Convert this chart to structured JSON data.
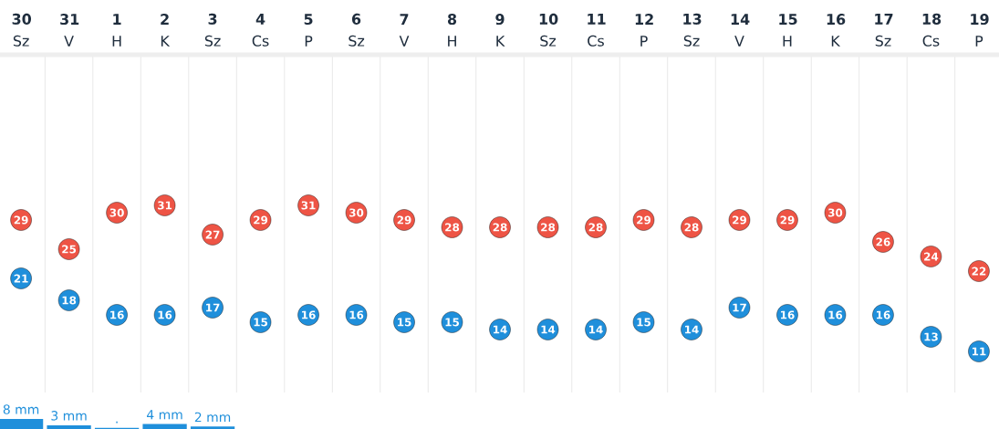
{
  "chart_data": [
    {
      "type": "scatter",
      "categories": [
        "**30** Sz",
        "**31** V",
        "**1** H",
        "**2** K",
        "**3** Sz",
        "**4** Cs",
        "**5** P",
        "**6** Sz",
        "**7** V",
        "**8** H",
        "**9** K",
        "**10** Sz",
        "**11** Cs",
        "**12** P",
        "**13** Sz",
        "**14** V",
        "**15** H",
        "**16** K",
        "**17** Sz",
        "**18** Cs",
        "**19** P"
      ],
      "series": [
        {
          "color": "#ee5445",
          "values": [
            29,
            25,
            30,
            31,
            27,
            29,
            31,
            30,
            29,
            28,
            28,
            28,
            28,
            29,
            28,
            29,
            29,
            30,
            26,
            24,
            22
          ]
        },
        {
          "color": "#1f8fdb",
          "values": [
            21,
            18,
            16,
            16,
            17,
            15,
            16,
            16,
            15,
            15,
            14,
            14,
            14,
            15,
            14,
            17,
            16,
            16,
            16,
            13,
            11
          ]
        }
      ],
      "marker": "circle",
      "data_labels": true,
      "grid": "x",
      "tick_labels": "x"
    },
    {
      "type": "bar",
      "categories": [
        null,
        null,
        null,
        null,
        null,
        null,
        null,
        null,
        null,
        null,
        null,
        null,
        null,
        null,
        null,
        null,
        null,
        null,
        null,
        null,
        null
      ],
      "series": [
        {
          "color": "#1f8fdb",
          "values": [
            8,
            3,
            1,
            4,
            2,
            null,
            null,
            null,
            null,
            null,
            null,
            null,
            null,
            null,
            null,
            null,
            null,
            null,
            null,
            null,
            null
          ],
          "value_labels": [
            "8 mm",
            "3 mm",
            ".",
            "4 mm",
            "2 mm",
            null,
            null,
            null,
            null,
            null,
            null,
            null,
            null,
            null,
            null,
            null,
            null,
            null,
            null,
            null,
            null
          ]
        }
      ],
      "grid": "x",
      "tick_labels": false
    }
  ]
}
